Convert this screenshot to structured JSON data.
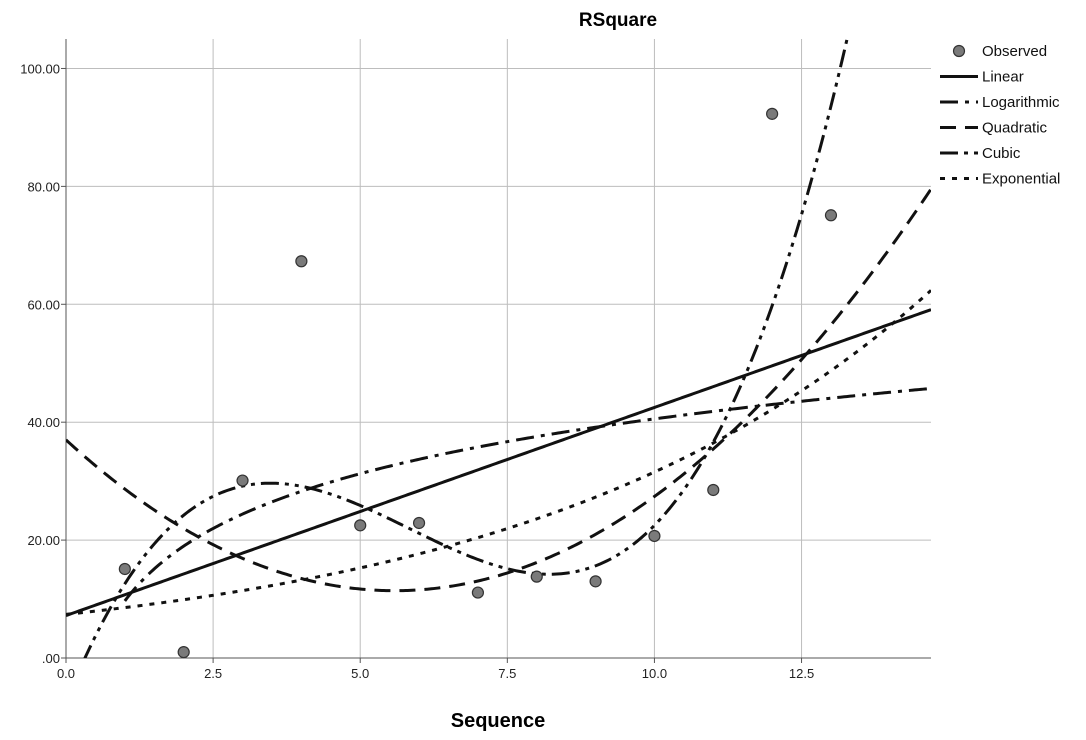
{
  "chart_data": {
    "type": "scatter",
    "title": "RSquare",
    "xlabel": "Sequence",
    "ylabel": "",
    "xlim": [
      0,
      14.7
    ],
    "ylim": [
      0,
      105
    ],
    "x_ticks": [
      0,
      2.5,
      5,
      7.5,
      10,
      12.5
    ],
    "x_tick_labels": [
      "0.0",
      "2.5",
      "5.0",
      "7.5",
      "10.0",
      "12.5"
    ],
    "y_ticks": [
      0,
      20,
      40,
      60,
      80,
      100
    ],
    "y_tick_labels": [
      ".00",
      "20.00",
      "40.00",
      "60.00",
      "80.00",
      "100.00"
    ],
    "grid": true,
    "legend_position": "top-right",
    "observed": {
      "name": "Observed",
      "x": [
        1,
        2,
        3,
        4,
        5,
        6,
        7,
        8,
        9,
        10,
        11,
        12,
        13
      ],
      "y": [
        15.1,
        1.0,
        30.1,
        67.3,
        22.5,
        22.9,
        11.1,
        13.8,
        13.0,
        20.7,
        28.5,
        92.3,
        75.1
      ]
    },
    "series": [
      {
        "name": "Linear",
        "model": "linear",
        "dash": "solid",
        "coefficients": {
          "b0": 7.2,
          "b1": 3.53
        }
      },
      {
        "name": "Logarithmic",
        "model": "logarithmic",
        "dash": "dashdot",
        "coefficients": {
          "b0": 9.68,
          "b1": 13.41
        }
      },
      {
        "name": "Quadratic",
        "model": "quadratic",
        "dash": "dashed",
        "coefficients": {
          "b0": 37.0,
          "b1": -9.16,
          "b2": 0.82
        }
      },
      {
        "name": "Cubic",
        "model": "cubic",
        "dash": "dashdotdot",
        "coefficients": {
          "b0": -7.5,
          "b1": 24.9,
          "b2": -5.1,
          "b3": 0.291
        }
      },
      {
        "name": "Exponential",
        "model": "exponential",
        "dash": "dotted",
        "coefficients": {
          "b0": 7.4,
          "b1": 0.145
        }
      }
    ]
  }
}
